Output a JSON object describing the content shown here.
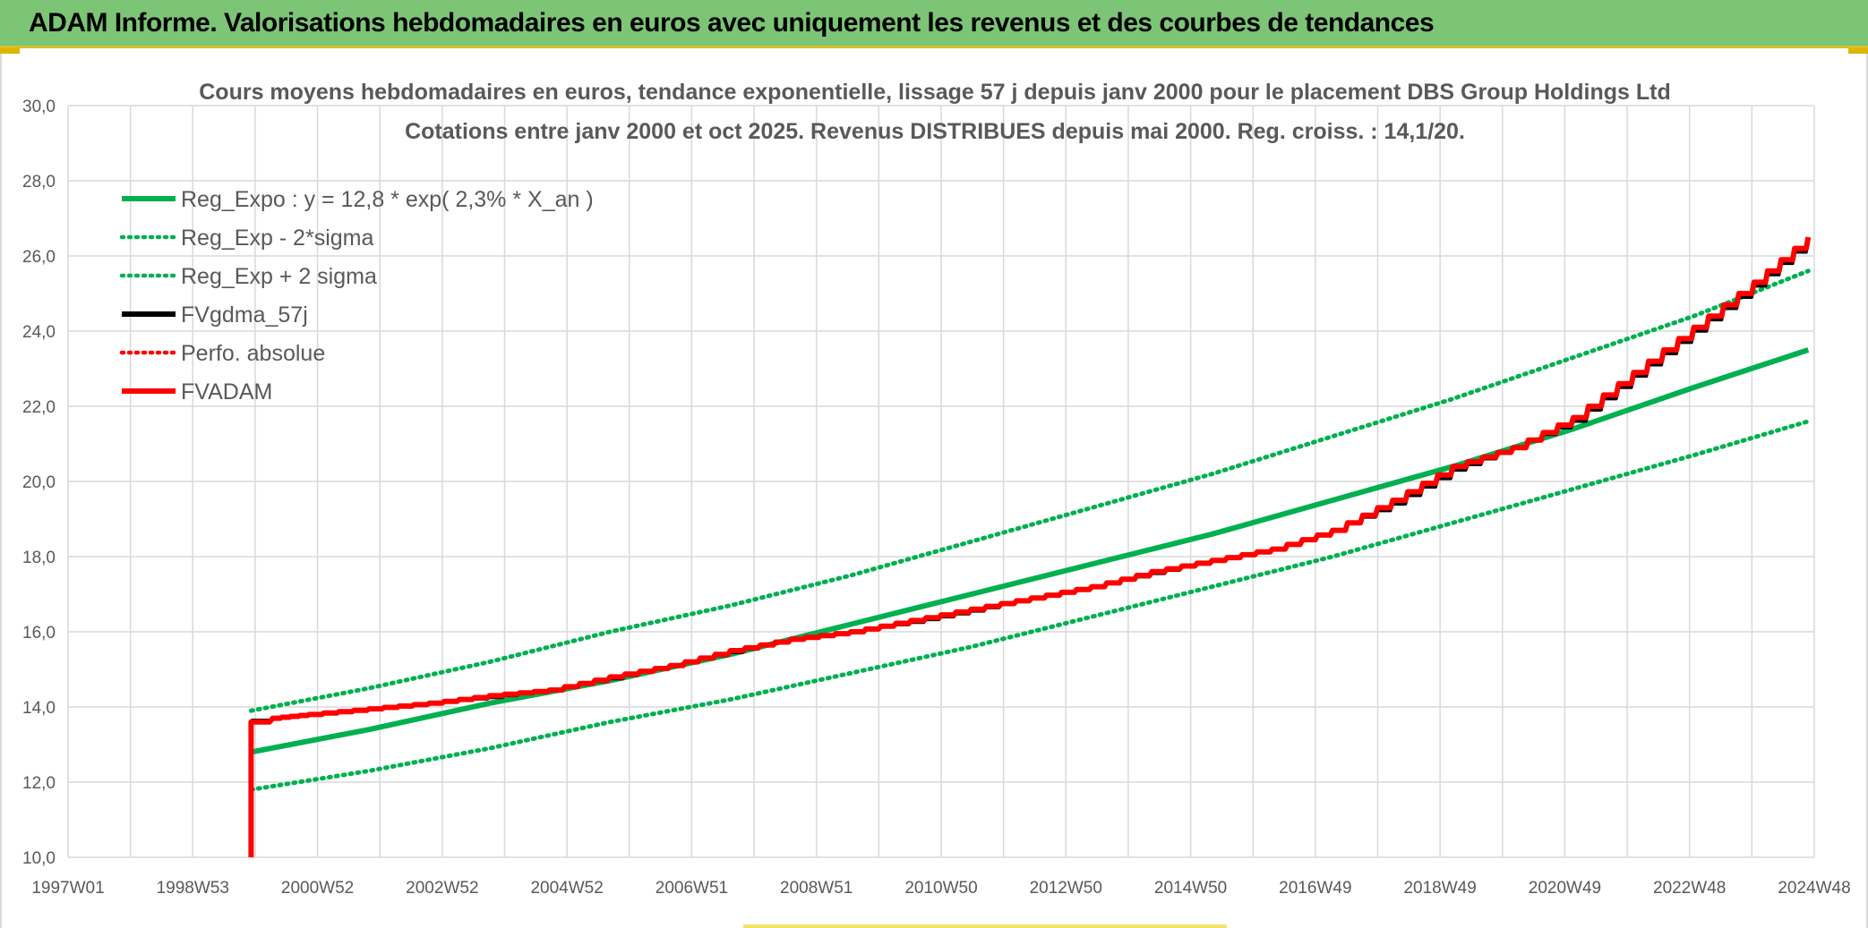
{
  "banner": {
    "title": "ADAM Informe. Valorisations hebdomadaires en euros avec uniquement les revenus et des courbes de tendances"
  },
  "chart_data": {
    "type": "line",
    "title": "Cours moyens hebdomadaires en euros, tendance exponentielle, lissage 57 j depuis janv 2000 pour le placement DBS Group Holdings Ltd",
    "subtitle": "Cotations entre janv 2000 et oct 2025. Revenus DISTRIBUES depuis mai 2000. Reg. croiss. : 14,1/20.",
    "xlabel": "",
    "ylabel": "",
    "x_ticks": [
      "1997W01",
      "1998W53",
      "2000W52",
      "2002W52",
      "2004W52",
      "2006W51",
      "2008W51",
      "2010W50",
      "2012W50",
      "2014W50",
      "2016W49",
      "2018W49",
      "2020W49",
      "2022W48",
      "2024W48"
    ],
    "x_range": [
      1997.0,
      2026.0
    ],
    "ylim": [
      10,
      30
    ],
    "y_ticks": [
      "10,0",
      "12,0",
      "14,0",
      "16,0",
      "18,0",
      "20,0",
      "22,0",
      "24,0",
      "26,0",
      "28,0",
      "30,0"
    ],
    "grid": true,
    "legend_position": "top-left",
    "series": [
      {
        "name": "Reg_Expo : y = 12,8 * exp( 2,3% *  X_an )",
        "color": "#00b050",
        "style": "solid",
        "points": [
          [
            2000.04,
            12.8
          ],
          [
            2002.0,
            13.4
          ],
          [
            2004.0,
            14.1
          ],
          [
            2006.0,
            14.7
          ],
          [
            2008.0,
            15.4
          ],
          [
            2010.0,
            16.2
          ],
          [
            2012.0,
            17.0
          ],
          [
            2014.0,
            17.8
          ],
          [
            2016.0,
            18.6
          ],
          [
            2018.0,
            19.5
          ],
          [
            2020.0,
            20.4
          ],
          [
            2022.0,
            21.4
          ],
          [
            2024.0,
            22.5
          ],
          [
            2025.9,
            23.5
          ]
        ]
      },
      {
        "name": "Reg_Exp - 2*sigma",
        "color": "#00b050",
        "style": "dotted",
        "points": [
          [
            2000.04,
            11.8
          ],
          [
            2002.0,
            12.3
          ],
          [
            2004.0,
            12.9
          ],
          [
            2006.0,
            13.6
          ],
          [
            2008.0,
            14.2
          ],
          [
            2010.0,
            14.9
          ],
          [
            2012.0,
            15.6
          ],
          [
            2014.0,
            16.4
          ],
          [
            2016.0,
            17.2
          ],
          [
            2018.0,
            18.0
          ],
          [
            2020.0,
            18.9
          ],
          [
            2022.0,
            19.8
          ],
          [
            2024.0,
            20.7
          ],
          [
            2025.9,
            21.6
          ]
        ]
      },
      {
        "name": "Reg_Exp + 2 sigma",
        "color": "#00b050",
        "style": "dotted",
        "points": [
          [
            2000.04,
            13.9
          ],
          [
            2002.0,
            14.5
          ],
          [
            2004.0,
            15.2
          ],
          [
            2006.0,
            16.0
          ],
          [
            2008.0,
            16.7
          ],
          [
            2010.0,
            17.5
          ],
          [
            2012.0,
            18.4
          ],
          [
            2014.0,
            19.3
          ],
          [
            2016.0,
            20.2
          ],
          [
            2018.0,
            21.2
          ],
          [
            2020.0,
            22.2
          ],
          [
            2022.0,
            23.3
          ],
          [
            2024.0,
            24.4
          ],
          [
            2025.9,
            25.6
          ]
        ]
      },
      {
        "name": "FVgdma_57j",
        "color": "#000000",
        "style": "solid",
        "points": [
          [
            2000.04,
            13.65
          ],
          [
            2000.4,
            13.7
          ],
          [
            2001.0,
            13.8
          ],
          [
            2002.0,
            13.95
          ],
          [
            2003.0,
            14.1
          ],
          [
            2004.0,
            14.25
          ],
          [
            2005.0,
            14.45
          ],
          [
            2006.0,
            14.75
          ],
          [
            2007.0,
            15.1
          ],
          [
            2008.0,
            15.45
          ],
          [
            2009.0,
            15.8
          ],
          [
            2010.0,
            16.0
          ],
          [
            2011.0,
            16.25
          ],
          [
            2012.0,
            16.55
          ],
          [
            2013.0,
            16.9
          ],
          [
            2014.0,
            17.2
          ],
          [
            2015.0,
            17.55
          ],
          [
            2016.0,
            17.9
          ],
          [
            2017.0,
            18.2
          ],
          [
            2018.0,
            18.7
          ],
          [
            2019.0,
            19.4
          ],
          [
            2020.0,
            20.3
          ],
          [
            2021.0,
            20.9
          ],
          [
            2022.0,
            21.6
          ],
          [
            2023.0,
            22.8
          ],
          [
            2024.0,
            24.0
          ],
          [
            2025.0,
            25.2
          ],
          [
            2025.9,
            26.4
          ]
        ]
      },
      {
        "name": "Perfo. absolue",
        "color": "#ff0000",
        "style": "dotted",
        "points": []
      },
      {
        "name": "FVADAM",
        "color": "#ff0000",
        "style": "solid",
        "points": [
          [
            2000.04,
            10.0
          ],
          [
            2000.04,
            13.6
          ],
          [
            2000.4,
            13.7
          ],
          [
            2001.0,
            13.8
          ],
          [
            2002.0,
            13.95
          ],
          [
            2003.0,
            14.1
          ],
          [
            2004.0,
            14.3
          ],
          [
            2005.0,
            14.45
          ],
          [
            2006.0,
            14.8
          ],
          [
            2007.0,
            15.1
          ],
          [
            2008.0,
            15.5
          ],
          [
            2009.0,
            15.8
          ],
          [
            2010.0,
            16.0
          ],
          [
            2011.0,
            16.3
          ],
          [
            2012.0,
            16.6
          ],
          [
            2013.0,
            16.9
          ],
          [
            2014.0,
            17.2
          ],
          [
            2015.0,
            17.6
          ],
          [
            2016.0,
            17.9
          ],
          [
            2017.0,
            18.2
          ],
          [
            2018.0,
            18.7
          ],
          [
            2019.0,
            19.5
          ],
          [
            2020.0,
            20.4
          ],
          [
            2021.0,
            20.9
          ],
          [
            2022.0,
            21.7
          ],
          [
            2023.0,
            22.9
          ],
          [
            2024.0,
            24.1
          ],
          [
            2025.0,
            25.3
          ],
          [
            2025.9,
            26.5
          ]
        ]
      }
    ]
  }
}
